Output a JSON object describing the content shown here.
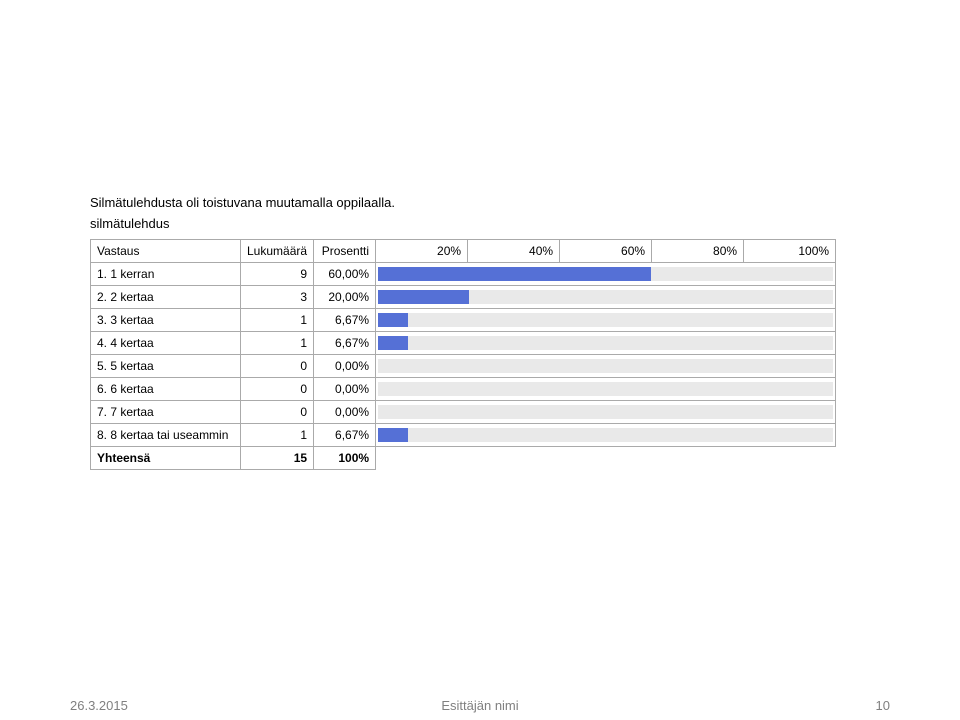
{
  "title": "Silmätulehdusta oli toistuvana muutamalla oppilaalla.",
  "subtitle": "silmätulehdus",
  "table": {
    "headers": {
      "answer": "Vastaus",
      "count": "Lukumäärä",
      "percent": "Prosentti",
      "ticks": [
        "20%",
        "40%",
        "60%",
        "80%",
        "100%"
      ]
    },
    "rows": [
      {
        "num": "1.",
        "label": "1 kerran",
        "count": "9",
        "percent": "60,00%",
        "value": 60.0
      },
      {
        "num": "2.",
        "label": "2 kertaa",
        "count": "3",
        "percent": "20,00%",
        "value": 20.0
      },
      {
        "num": "3.",
        "label": "3 kertaa",
        "count": "1",
        "percent": "6,67%",
        "value": 6.67
      },
      {
        "num": "4.",
        "label": "4 kertaa",
        "count": "1",
        "percent": "6,67%",
        "value": 6.67
      },
      {
        "num": "5.",
        "label": "5 kertaa",
        "count": "0",
        "percent": "0,00%",
        "value": 0.0
      },
      {
        "num": "6.",
        "label": "6 kertaa",
        "count": "0",
        "percent": "0,00%",
        "value": 0.0
      },
      {
        "num": "7.",
        "label": "7 kertaa",
        "count": "0",
        "percent": "0,00%",
        "value": 0.0
      },
      {
        "num": "8.",
        "label": "8 kertaa tai useammin",
        "count": "1",
        "percent": "6,67%",
        "value": 6.67
      }
    ],
    "total": {
      "label": "Yhteensä",
      "count": "15",
      "percent": "100%"
    }
  },
  "style": {
    "bar_color": "#5570d6",
    "track_color": "#e9e9e9",
    "border_color": "#aaaaaa",
    "max_percent": 100
  },
  "footer": {
    "date": "26.3.2015",
    "author": "Esittäjän nimi",
    "page": "10"
  }
}
